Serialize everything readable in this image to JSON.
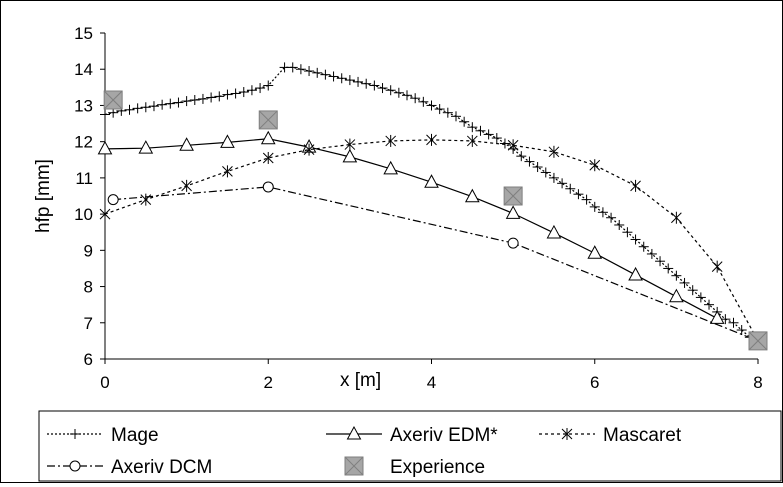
{
  "chart_data": {
    "type": "line",
    "title": "",
    "xlabel": "x [m]",
    "ylabel": "hfp [mm]",
    "xlim": [
      0,
      8
    ],
    "ylim": [
      6,
      15
    ],
    "xticks": [
      "0",
      "2",
      "4",
      "6",
      "8"
    ],
    "yticks": [
      "6",
      "7",
      "8",
      "9",
      "10",
      "11",
      "12",
      "13",
      "14",
      "15"
    ],
    "grid": false,
    "legend_position": "bottom",
    "series": [
      {
        "name": "Mage",
        "marker": "plus",
        "line": "dotted",
        "points": [
          [
            0,
            12.75
          ],
          [
            0.1,
            12.8
          ],
          [
            0.2,
            12.85
          ],
          [
            0.3,
            12.88
          ],
          [
            0.4,
            12.92
          ],
          [
            0.5,
            12.95
          ],
          [
            0.6,
            12.98
          ],
          [
            0.7,
            13.02
          ],
          [
            0.8,
            13.05
          ],
          [
            0.9,
            13.08
          ],
          [
            1.0,
            13.12
          ],
          [
            1.1,
            13.15
          ],
          [
            1.2,
            13.18
          ],
          [
            1.3,
            13.22
          ],
          [
            1.4,
            13.25
          ],
          [
            1.5,
            13.3
          ],
          [
            1.6,
            13.33
          ],
          [
            1.7,
            13.37
          ],
          [
            1.8,
            13.42
          ],
          [
            1.9,
            13.48
          ],
          [
            2.0,
            13.55
          ],
          [
            2.2,
            14.05
          ],
          [
            2.3,
            14.05
          ],
          [
            2.4,
            14.0
          ],
          [
            2.5,
            13.95
          ],
          [
            2.6,
            13.9
          ],
          [
            2.7,
            13.85
          ],
          [
            2.8,
            13.8
          ],
          [
            2.9,
            13.75
          ],
          [
            3.0,
            13.7
          ],
          [
            3.1,
            13.65
          ],
          [
            3.2,
            13.6
          ],
          [
            3.3,
            13.55
          ],
          [
            3.4,
            13.48
          ],
          [
            3.5,
            13.42
          ],
          [
            3.6,
            13.35
          ],
          [
            3.7,
            13.28
          ],
          [
            3.8,
            13.2
          ],
          [
            3.9,
            13.1
          ],
          [
            4.0,
            13.0
          ],
          [
            4.1,
            12.9
          ],
          [
            4.2,
            12.8
          ],
          [
            4.3,
            12.7
          ],
          [
            4.4,
            12.55
          ],
          [
            4.5,
            12.4
          ],
          [
            4.6,
            12.3
          ],
          [
            4.7,
            12.2
          ],
          [
            4.8,
            12.1
          ],
          [
            4.9,
            11.95
          ],
          [
            5.0,
            11.8
          ],
          [
            5.1,
            11.6
          ],
          [
            5.2,
            11.45
          ],
          [
            5.3,
            11.3
          ],
          [
            5.4,
            11.15
          ],
          [
            5.5,
            11.0
          ],
          [
            5.6,
            10.85
          ],
          [
            5.7,
            10.7
          ],
          [
            5.8,
            10.55
          ],
          [
            5.9,
            10.4
          ],
          [
            6.0,
            10.2
          ],
          [
            6.1,
            10.05
          ],
          [
            6.2,
            9.9
          ],
          [
            6.3,
            9.7
          ],
          [
            6.4,
            9.5
          ],
          [
            6.5,
            9.3
          ],
          [
            6.6,
            9.1
          ],
          [
            6.7,
            8.9
          ],
          [
            6.8,
            8.7
          ],
          [
            6.9,
            8.5
          ],
          [
            7.0,
            8.3
          ],
          [
            7.1,
            8.1
          ],
          [
            7.2,
            7.9
          ],
          [
            7.3,
            7.7
          ],
          [
            7.4,
            7.5
          ],
          [
            7.5,
            7.3
          ],
          [
            7.6,
            7.1
          ],
          [
            7.7,
            7.0
          ],
          [
            7.8,
            6.8
          ],
          [
            7.9,
            6.6
          ],
          [
            8.0,
            6.5
          ]
        ]
      },
      {
        "name": "Axeriv EDM*",
        "marker": "triangle",
        "line": "solid",
        "points": [
          [
            0,
            11.8
          ],
          [
            0.5,
            11.82
          ],
          [
            1.0,
            11.9
          ],
          [
            1.5,
            11.98
          ],
          [
            2.0,
            12.08
          ],
          [
            2.5,
            11.85
          ],
          [
            3.0,
            11.58
          ],
          [
            3.5,
            11.25
          ],
          [
            4.0,
            10.88
          ],
          [
            4.5,
            10.48
          ],
          [
            5.0,
            10.02
          ],
          [
            5.5,
            9.48
          ],
          [
            6.0,
            8.92
          ],
          [
            6.5,
            8.32
          ],
          [
            7.0,
            7.72
          ],
          [
            7.5,
            7.12
          ]
        ]
      },
      {
        "name": "Mascaret",
        "marker": "asterisk",
        "line": "dashed",
        "points": [
          [
            0,
            10.0
          ],
          [
            0.5,
            10.4
          ],
          [
            1.0,
            10.78
          ],
          [
            1.5,
            11.18
          ],
          [
            2.0,
            11.55
          ],
          [
            2.5,
            11.78
          ],
          [
            3.0,
            11.92
          ],
          [
            3.5,
            12.02
          ],
          [
            4.0,
            12.05
          ],
          [
            4.5,
            12.02
          ],
          [
            5.0,
            11.9
          ],
          [
            5.5,
            11.72
          ],
          [
            6.0,
            11.35
          ],
          [
            6.5,
            10.78
          ],
          [
            7.0,
            9.9
          ],
          [
            7.5,
            8.55
          ],
          [
            8.0,
            6.5
          ]
        ]
      },
      {
        "name": "Axeriv DCM",
        "marker": "circle",
        "line": "dashdot",
        "points": [
          [
            0.1,
            10.4
          ],
          [
            2.0,
            10.75
          ],
          [
            5.0,
            9.2
          ],
          [
            8.0,
            6.5
          ]
        ]
      },
      {
        "name": "Experience",
        "marker": "crossed-square",
        "line": "none",
        "points": [
          [
            0.1,
            13.15
          ],
          [
            2.0,
            12.6
          ],
          [
            5.0,
            10.5
          ],
          [
            8.0,
            6.5
          ]
        ]
      }
    ]
  },
  "colors": {
    "line": "#000000",
    "experience_fill": "#a6a6a6",
    "background": "#ffffff"
  }
}
